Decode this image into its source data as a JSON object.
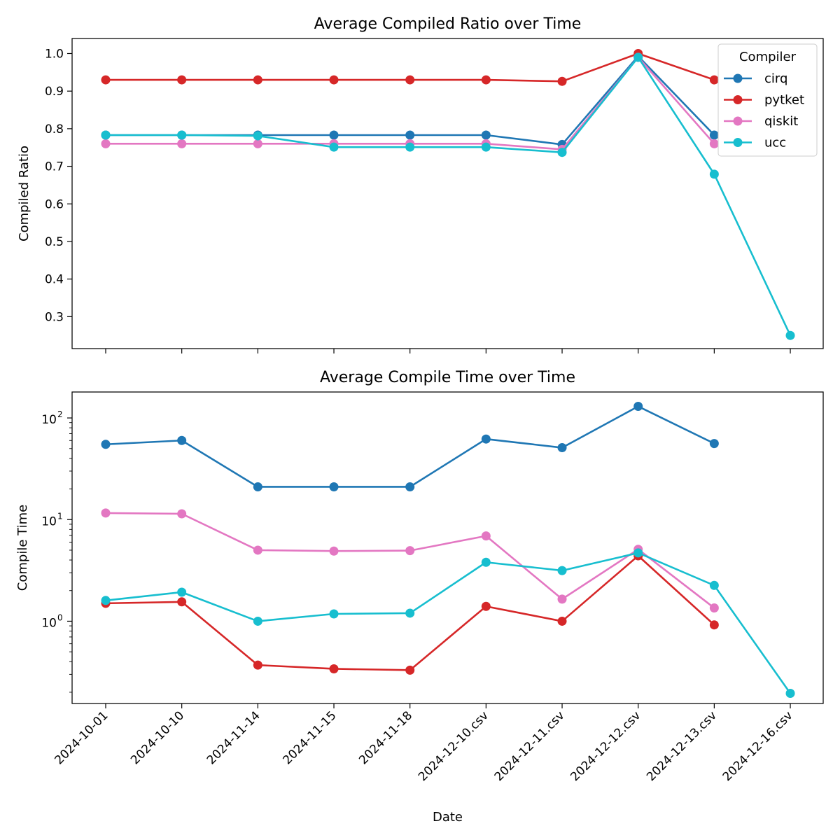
{
  "chart_data": [
    {
      "type": "line",
      "title": "Average Compiled Ratio over Time",
      "xlabel": "",
      "ylabel": "Compiled Ratio",
      "yscale": "linear",
      "ylim": [
        0.215,
        1.04
      ],
      "yticks": [
        0.3,
        0.4,
        0.5,
        0.6,
        0.7,
        0.8,
        0.9,
        1.0
      ],
      "ytick_labels": [
        "0.3",
        "0.4",
        "0.5",
        "0.6",
        "0.7",
        "0.8",
        "0.9",
        "1.0"
      ],
      "categories": [
        "2024-10-01",
        "2024-10-10",
        "2024-11-14",
        "2024-11-15",
        "2024-11-18",
        "2024-12-10.csv",
        "2024-12-11.csv",
        "2024-12-12.csv",
        "2024-12-13.csv",
        "2024-12-16.csv"
      ],
      "show_xtick_labels": false,
      "grid": false,
      "legend": {
        "title": "Compiler",
        "placement": "top-right"
      },
      "series": [
        {
          "name": "cirq",
          "color": "#1f77b4",
          "values": [
            0.783,
            0.783,
            0.783,
            0.783,
            0.783,
            0.783,
            0.758,
            0.993,
            0.783,
            null
          ]
        },
        {
          "name": "pytket",
          "color": "#d62728",
          "values": [
            0.93,
            0.93,
            0.93,
            0.93,
            0.93,
            0.93,
            0.926,
            1.0,
            0.93,
            null
          ]
        },
        {
          "name": "qiskit",
          "color": "#e377c2",
          "values": [
            0.76,
            0.76,
            0.76,
            0.76,
            0.76,
            0.76,
            0.745,
            0.99,
            0.76,
            null
          ]
        },
        {
          "name": "ucc",
          "color": "#17becf",
          "values": [
            0.783,
            0.783,
            0.781,
            0.751,
            0.751,
            0.751,
            0.737,
            0.99,
            0.679,
            0.25
          ]
        }
      ]
    },
    {
      "type": "line",
      "title": "Average Compile Time over Time",
      "xlabel": "Date",
      "ylabel": "Compile Time",
      "yscale": "log",
      "ylim": [
        0.155,
        180
      ],
      "yticks": [
        1,
        10,
        100
      ],
      "ytick_labels": [
        {
          "base": "10",
          "exp": "0"
        },
        {
          "base": "10",
          "exp": "1"
        },
        {
          "base": "10",
          "exp": "2"
        }
      ],
      "categories": [
        "2024-10-01",
        "2024-10-10",
        "2024-11-14",
        "2024-11-15",
        "2024-11-18",
        "2024-12-10.csv",
        "2024-12-11.csv",
        "2024-12-12.csv",
        "2024-12-13.csv",
        "2024-12-16.csv"
      ],
      "show_xtick_labels": true,
      "grid": false,
      "series": [
        {
          "name": "cirq",
          "color": "#1f77b4",
          "values": [
            55,
            60,
            21,
            21,
            21,
            62,
            51,
            130,
            56,
            null
          ]
        },
        {
          "name": "pytket",
          "color": "#d62728",
          "values": [
            1.5,
            1.55,
            0.37,
            0.34,
            0.33,
            1.4,
            1.0,
            4.4,
            0.92,
            null
          ]
        },
        {
          "name": "qiskit",
          "color": "#e377c2",
          "values": [
            11.6,
            11.4,
            5.0,
            4.9,
            4.95,
            6.9,
            1.65,
            5.1,
            1.35,
            null
          ]
        },
        {
          "name": "ucc",
          "color": "#17becf",
          "values": [
            1.6,
            1.93,
            1.0,
            1.18,
            1.2,
            3.8,
            3.15,
            4.7,
            2.25,
            0.195
          ]
        }
      ]
    }
  ]
}
